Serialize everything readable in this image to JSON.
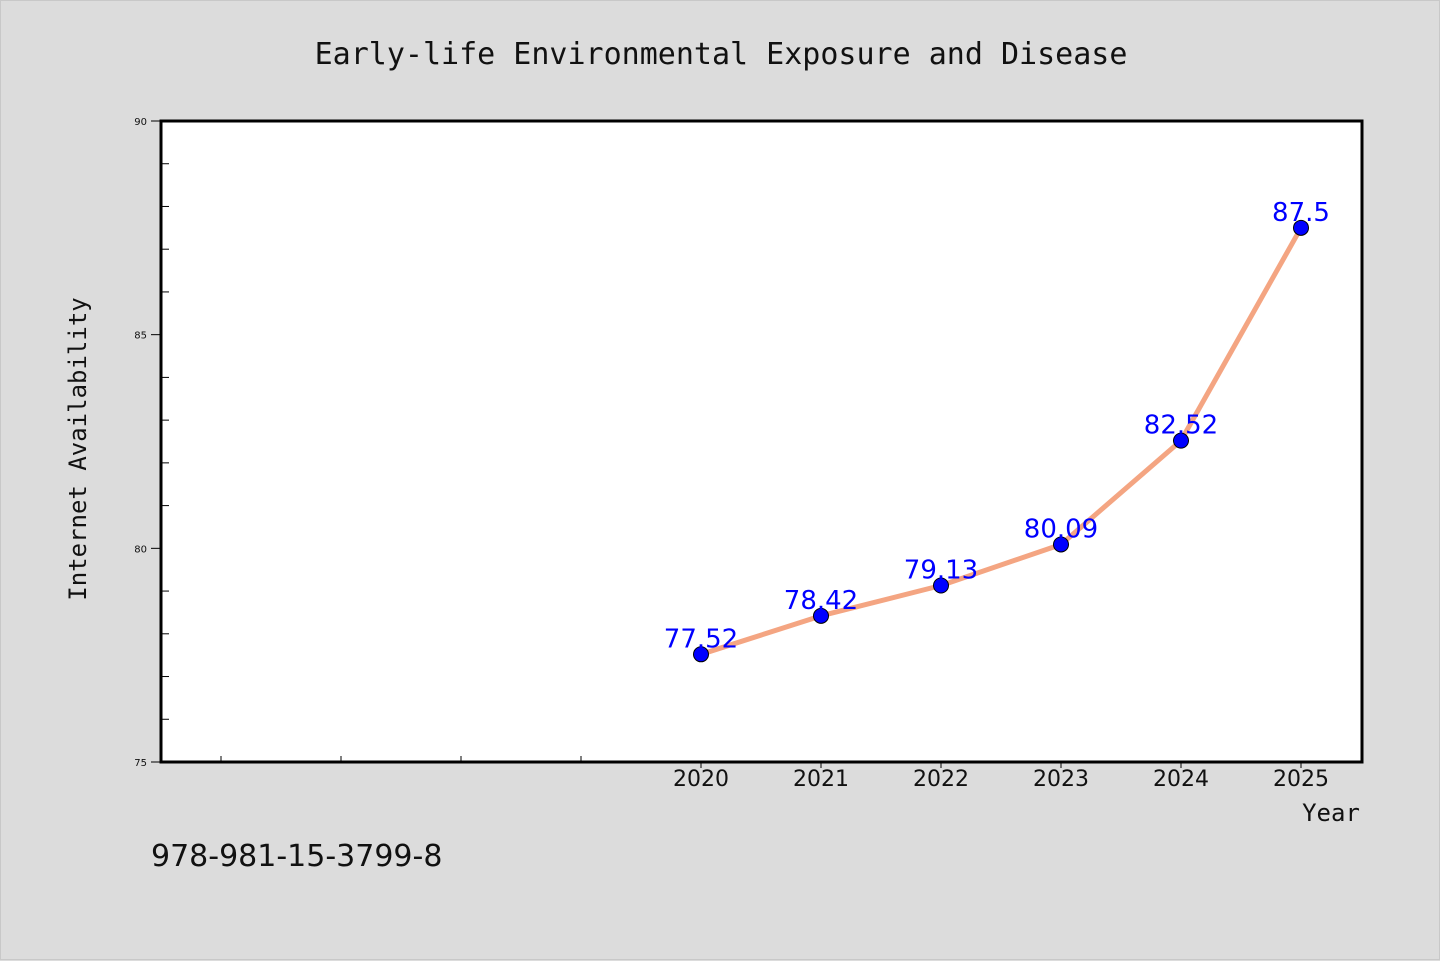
{
  "chart_data": {
    "type": "line",
    "title": "Early-life Environmental Exposure and Disease",
    "xlabel": "Year",
    "ylabel": "Internet Availability",
    "x": [
      "2020",
      "2021",
      "2022",
      "2023",
      "2024",
      "2025"
    ],
    "values": [
      77.52,
      78.42,
      79.13,
      80.09,
      82.52,
      87.5
    ],
    "data_labels": [
      "77.52",
      "78.42",
      "79.13",
      "80.09",
      "82.52",
      "87.5"
    ],
    "ylim": [
      75,
      90
    ],
    "yticks": [
      "75",
      "80",
      "85",
      "90"
    ],
    "grid": false,
    "legend": "none",
    "colors": {
      "line": "#f4a582",
      "marker": "#0000ff",
      "data_label": "#0000ff",
      "plot_background": "#ffffff",
      "figure_background": "#dcdcdc"
    }
  },
  "caption": "978-981-15-3799-8"
}
